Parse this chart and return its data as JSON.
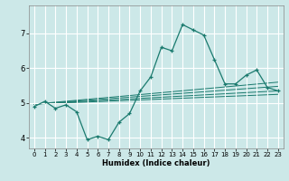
{
  "xlabel": "Humidex (Indice chaleur)",
  "xlim": [
    -0.5,
    23.5
  ],
  "ylim": [
    3.7,
    7.8
  ],
  "xticks": [
    0,
    1,
    2,
    3,
    4,
    5,
    6,
    7,
    8,
    9,
    10,
    11,
    12,
    13,
    14,
    15,
    16,
    17,
    18,
    19,
    20,
    21,
    22,
    23
  ],
  "yticks": [
    4,
    5,
    6,
    7
  ],
  "bg_color": "#cce8e8",
  "line_color": "#1a7a6e",
  "grid_color": "#ffffff",
  "main_x": [
    0,
    1,
    2,
    3,
    4,
    5,
    6,
    7,
    8,
    9,
    10,
    11,
    12,
    13,
    14,
    15,
    16,
    17,
    18,
    19,
    20,
    21,
    22,
    23
  ],
  "main_y": [
    4.9,
    5.05,
    4.85,
    4.95,
    4.75,
    3.95,
    4.05,
    3.95,
    4.45,
    4.7,
    5.35,
    5.75,
    6.6,
    6.5,
    7.25,
    7.1,
    6.95,
    6.25,
    5.55,
    5.55,
    5.8,
    5.95,
    5.45,
    5.35
  ],
  "reg_lines": [
    {
      "x": [
        0,
        23
      ],
      "y": [
        4.97,
        5.25
      ]
    },
    {
      "x": [
        0,
        23
      ],
      "y": [
        4.97,
        5.35
      ]
    },
    {
      "x": [
        0,
        23
      ],
      "y": [
        4.97,
        5.48
      ]
    },
    {
      "x": [
        0,
        23
      ],
      "y": [
        4.97,
        5.6
      ]
    }
  ]
}
